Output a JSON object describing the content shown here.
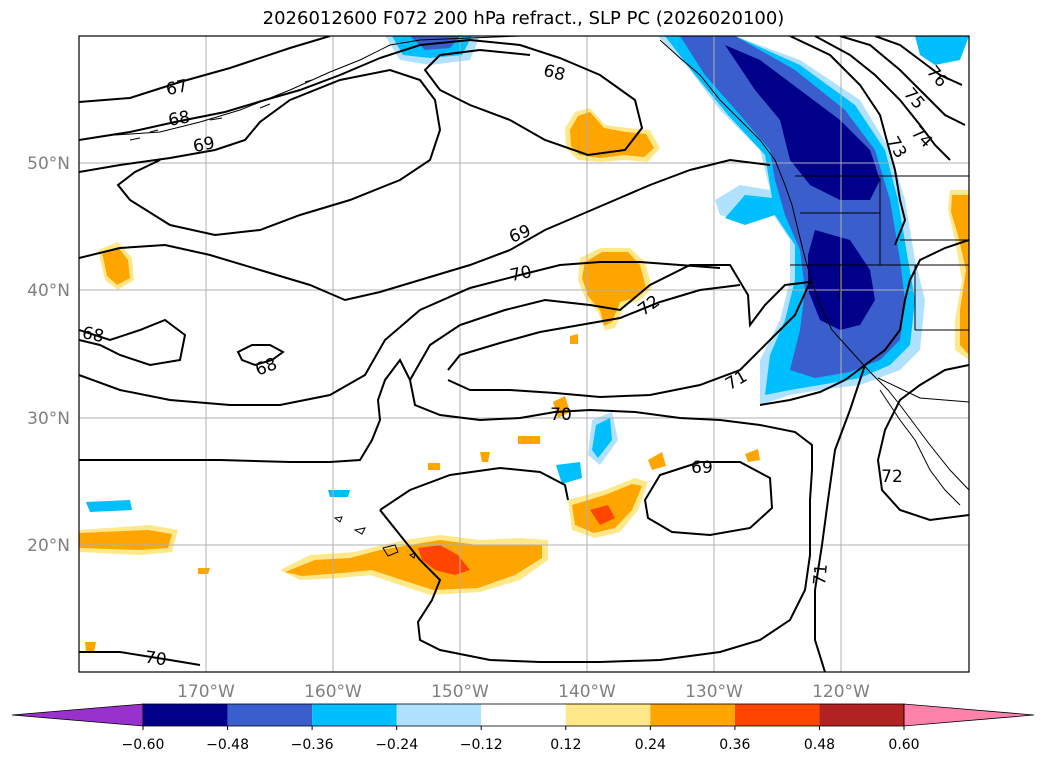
{
  "title": "2026012600 F072 200 hPa refract., SLP PC (2026020100)",
  "axes": {
    "lat_labels": [
      "50°N",
      "40°N",
      "30°N",
      "20°N"
    ],
    "lon_labels": [
      "170°W",
      "160°W",
      "150°W",
      "140°W",
      "130°W",
      "120°W"
    ],
    "grid": true
  },
  "contour_labels": [
    "67",
    "68",
    "69",
    "68",
    "69",
    "70",
    "68",
    "68",
    "72",
    "71",
    "70",
    "69",
    "71",
    "72",
    "70",
    "76",
    "75",
    "74",
    "73"
  ],
  "colorbar": {
    "ticks": [
      "−0.60",
      "−0.48",
      "−0.36",
      "−0.24",
      "−0.12",
      "0.12",
      "0.24",
      "0.36",
      "0.48",
      "0.60"
    ],
    "colors": [
      "#9932cc",
      "#00008b",
      "#3a5fcd",
      "#00bfff",
      "#b0e2ff",
      "#ffffff",
      "#ffe88a",
      "#ffa500",
      "#ff4500",
      "#b22222",
      "#ff82ab"
    ],
    "extend": "both"
  },
  "colors": {
    "contour": "#000000",
    "coast": "#000000",
    "grid": "#b0b0b0",
    "tick_label": "#7f7f7f"
  }
}
